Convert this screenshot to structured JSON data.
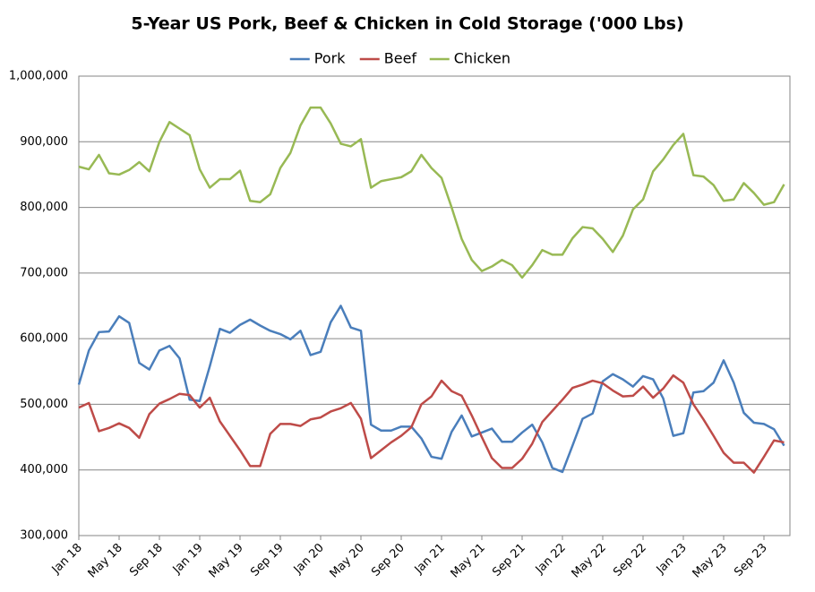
{
  "chart_data": {
    "type": "line",
    "title": "5-Year US Pork, Beef & Chicken in Cold Storage ('000 Lbs)",
    "categories": [
      "Jan 18",
      null,
      null,
      null,
      "May 18",
      null,
      null,
      null,
      "Sep 18",
      null,
      null,
      null,
      "Jan 19",
      null,
      null,
      null,
      "May 19",
      null,
      null,
      null,
      "Sep 19",
      null,
      null,
      null,
      "Jan 20",
      null,
      null,
      null,
      "May 20",
      null,
      null,
      null,
      "Sep 20",
      null,
      null,
      null,
      "Jan 21",
      null,
      null,
      null,
      "May 21",
      null,
      null,
      null,
      "Sep 21",
      null,
      null,
      null,
      "Jan 22",
      null,
      null,
      null,
      "May 22",
      null,
      null,
      null,
      "Sep 22",
      null,
      null,
      null,
      "Jan 23",
      null,
      null,
      null,
      "May 23",
      null,
      null,
      null,
      "Sep 23",
      null,
      null
    ],
    "series": [
      {
        "name": "Pork",
        "color": "#4a7ebb",
        "values": [
          530000,
          582000,
          610000,
          611000,
          634000,
          624000,
          563000,
          553000,
          582000,
          589000,
          570000,
          507000,
          505000,
          558000,
          615000,
          609000,
          621000,
          629000,
          620000,
          612000,
          607000,
          599000,
          612000,
          575000,
          580000,
          625000,
          650000,
          617000,
          612000,
          469000,
          460000,
          460000,
          466000,
          466000,
          448000,
          420000,
          417000,
          458000,
          483000,
          451000,
          457000,
          463000,
          443000,
          443000,
          457000,
          469000,
          442000,
          403000,
          397000,
          437000,
          478000,
          486000,
          535000,
          546000,
          538000,
          527000,
          543000,
          538000,
          509000,
          452000,
          456000,
          518000,
          520000,
          533000,
          567000,
          533000,
          487000,
          472000,
          470000,
          462000,
          437000
        ]
      },
      {
        "name": "Beef",
        "color": "#be4b48",
        "values": [
          495000,
          502000,
          459000,
          464000,
          471000,
          464000,
          449000,
          485000,
          501000,
          508000,
          516000,
          514000,
          495000,
          510000,
          474000,
          452000,
          430000,
          406000,
          406000,
          455000,
          470000,
          470000,
          467000,
          477000,
          480000,
          489000,
          494000,
          502000,
          478000,
          418000,
          430000,
          442000,
          452000,
          465000,
          500000,
          512000,
          536000,
          520000,
          513000,
          483000,
          450000,
          418000,
          403000,
          403000,
          417000,
          440000,
          473000,
          490000,
          507000,
          525000,
          530000,
          536000,
          532000,
          521000,
          512000,
          513000,
          527000,
          510000,
          524000,
          544000,
          533000,
          500000,
          477000,
          452000,
          426000,
          411000,
          411000,
          396000,
          420000,
          445000,
          442000
        ]
      },
      {
        "name": "Chicken",
        "color": "#98b954",
        "values": [
          862000,
          858000,
          880000,
          852000,
          850000,
          857000,
          869000,
          855000,
          900000,
          930000,
          920000,
          910000,
          858000,
          830000,
          843000,
          843000,
          856000,
          810000,
          808000,
          820000,
          860000,
          883000,
          925000,
          952000,
          952000,
          928000,
          897000,
          893000,
          904000,
          830000,
          840000,
          843000,
          846000,
          855000,
          880000,
          860000,
          845000,
          800000,
          752000,
          720000,
          703000,
          710000,
          720000,
          712000,
          693000,
          712000,
          735000,
          728000,
          728000,
          753000,
          770000,
          768000,
          752000,
          732000,
          757000,
          797000,
          812000,
          855000,
          873000,
          895000,
          912000,
          849000,
          847000,
          834000,
          810000,
          812000,
          837000,
          822000,
          804000,
          808000,
          835000
        ]
      }
    ],
    "ylim": [
      300000,
      1000000
    ],
    "yticks": [
      {
        "value": 300000,
        "label": "300,000"
      },
      {
        "value": 400000,
        "label": "400,000"
      },
      {
        "value": 500000,
        "label": "500,000"
      },
      {
        "value": 600000,
        "label": "600,000"
      },
      {
        "value": 700000,
        "label": "700,000"
      },
      {
        "value": 800000,
        "label": "800,000"
      },
      {
        "value": 900000,
        "label": "900,000"
      },
      {
        "value": 1000000,
        "label": "1,000,000"
      }
    ],
    "grid": true,
    "legend": "top"
  }
}
